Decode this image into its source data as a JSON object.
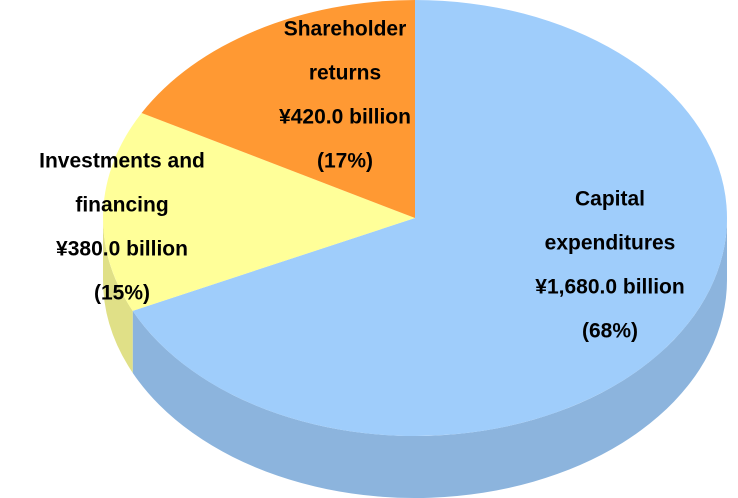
{
  "chart_data": {
    "type": "pie3d",
    "categories": [
      [
        "Capital",
        "expenditures"
      ],
      [
        "Investments and",
        "financing"
      ],
      [
        "Shareholder",
        "returns"
      ]
    ],
    "values": [
      68,
      15,
      17
    ],
    "value_labels": [
      "(68%)",
      "(15%)",
      "(17%)"
    ],
    "amounts": [
      1680.0,
      380.0,
      420.0
    ],
    "amount_labels": [
      "¥1,680.0 billion",
      "¥380.0 billion",
      "¥420.0 billion"
    ],
    "colors": [
      "#9fcdfb",
      "#ffff99",
      "#ff9933"
    ]
  }
}
